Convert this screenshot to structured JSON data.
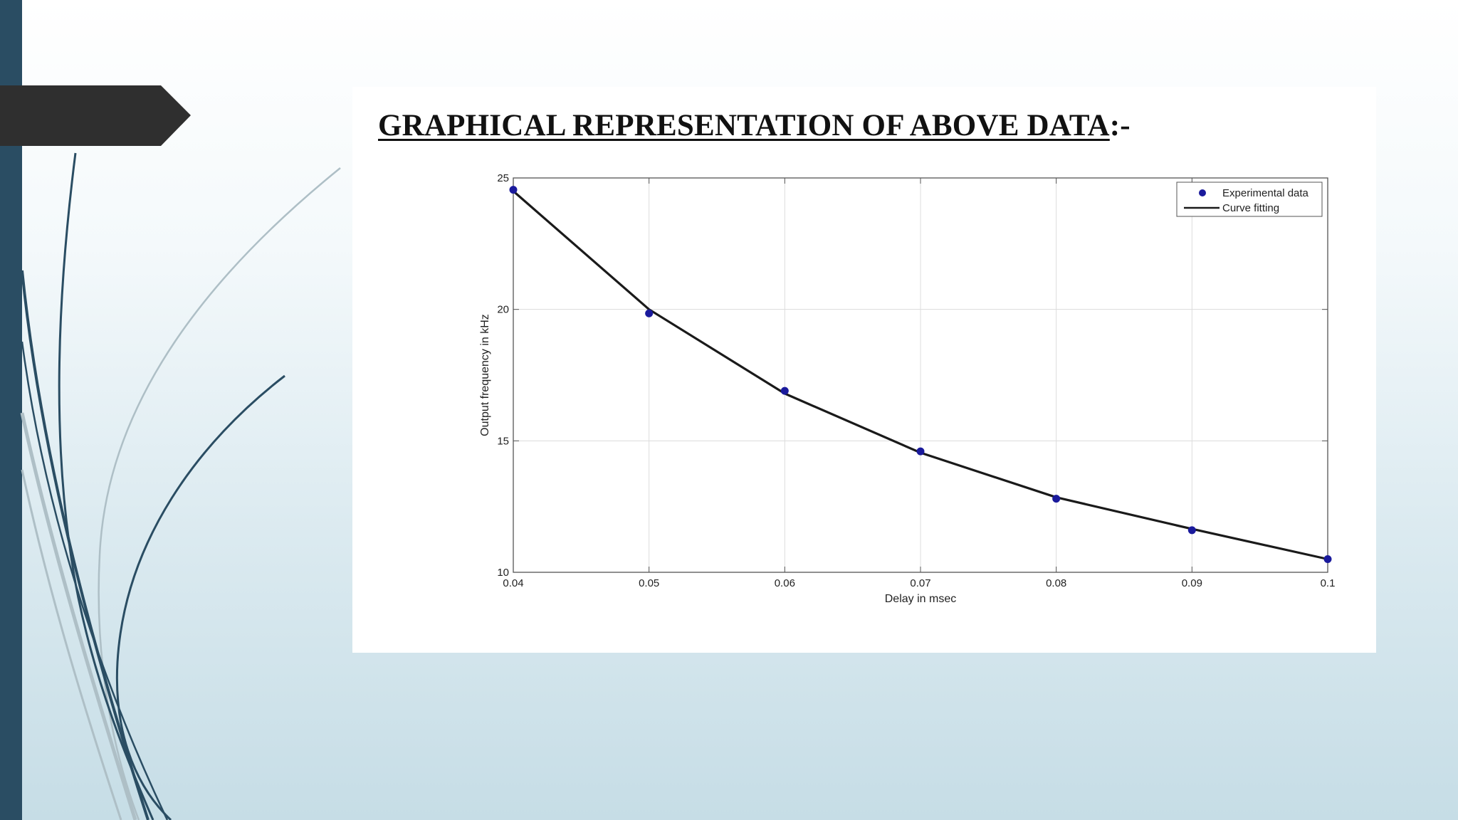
{
  "slide": {
    "title": "GRAPHICAL REPRESENTATION OF ABOVE DATA",
    "title_suffix": ":-"
  },
  "colors": {
    "left_bar": "#2a4d63",
    "arrow_tab": "#2f2f2f",
    "swoosh_dark": "#2a4d63",
    "swoosh_light": "#aebfc6",
    "marker": "#1a1a9c",
    "curve": "#1a1a1a"
  },
  "chart_data": {
    "type": "line",
    "xlabel": "Delay in msec",
    "ylabel": "Output frequency in kHz",
    "xlim": [
      0.04,
      0.1
    ],
    "ylim": [
      10,
      25
    ],
    "x_ticks": [
      "0.04",
      "0.05",
      "0.06",
      "0.07",
      "0.08",
      "0.09",
      "0.1"
    ],
    "y_ticks": [
      "10",
      "15",
      "20",
      "25"
    ],
    "grid": true,
    "legend_position": "top-right",
    "series": [
      {
        "name": "Experimental data",
        "style": "markers",
        "x": [
          0.04,
          0.05,
          0.06,
          0.07,
          0.08,
          0.09,
          0.1
        ],
        "y": [
          24.55,
          19.85,
          16.9,
          14.6,
          12.8,
          11.6,
          10.5
        ]
      },
      {
        "name": "Curve fitting",
        "style": "line",
        "x": [
          0.04,
          0.05,
          0.06,
          0.07,
          0.08,
          0.09,
          0.1
        ],
        "y": [
          24.5,
          20.0,
          16.8,
          14.55,
          12.85,
          11.65,
          10.5
        ]
      }
    ]
  }
}
